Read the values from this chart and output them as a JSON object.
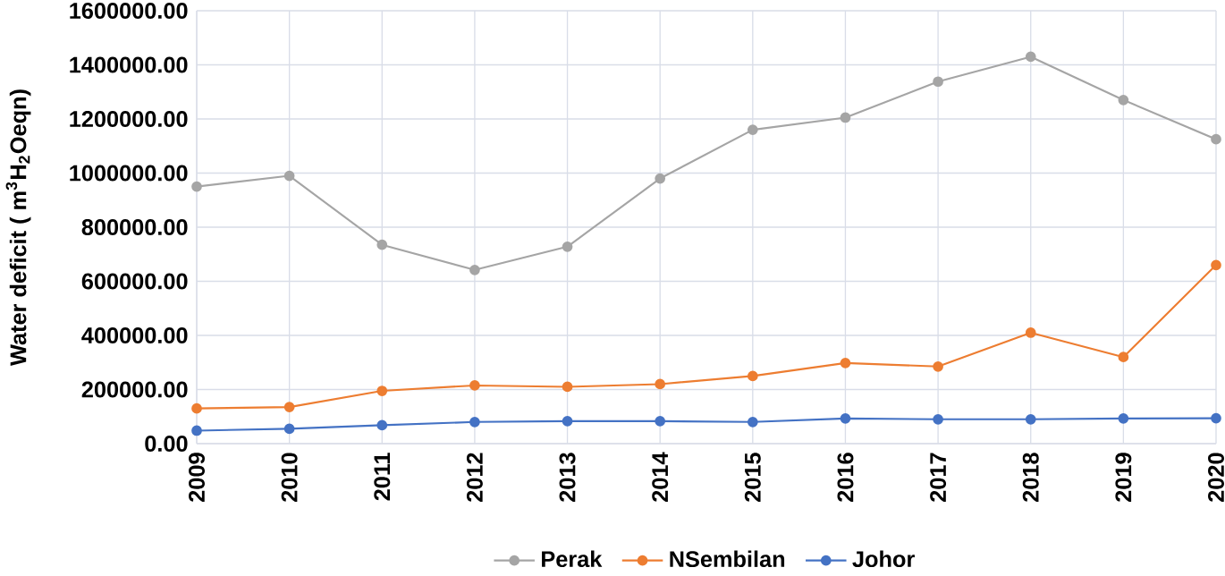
{
  "chart_data": {
    "type": "line",
    "ylabel": "Water deficit ( m$^{3}$H$_{2}$Oeqn)",
    "categories": [
      "2009",
      "2010",
      "2011",
      "2012",
      "2013",
      "2014",
      "2015",
      "2016",
      "2017",
      "2018",
      "2019",
      "2020"
    ],
    "series": [
      {
        "name": "Perak",
        "color": "#a5a5a5",
        "values": [
          950000,
          990000,
          735000,
          642000,
          728000,
          980000,
          1160000,
          1205000,
          1338000,
          1430000,
          1270000,
          1125000
        ]
      },
      {
        "name": "NSembilan",
        "color": "#ed7d31",
        "values": [
          130000,
          135000,
          195000,
          215000,
          210000,
          220000,
          250000,
          298000,
          285000,
          410000,
          320000,
          660000
        ]
      },
      {
        "name": "Johor",
        "color": "#4472c4",
        "values": [
          48000,
          55000,
          68000,
          80000,
          83000,
          83000,
          80000,
          93000,
          90000,
          90000,
          93000,
          94000
        ]
      }
    ],
    "ylim": [
      0,
      1600000
    ],
    "yticks": [
      {
        "value": 0,
        "label": "0.00"
      },
      {
        "value": 200000,
        "label": "200000.00"
      },
      {
        "value": 400000,
        "label": "400000.00"
      },
      {
        "value": 600000,
        "label": "600000.00"
      },
      {
        "value": 800000,
        "label": "800000.00"
      },
      {
        "value": 1000000,
        "label": "1000000.00"
      },
      {
        "value": 1200000,
        "label": "1200000.00"
      },
      {
        "value": 1400000,
        "label": "1400000.00"
      },
      {
        "value": 1600000,
        "label": "1600000.00"
      }
    ],
    "grid": true,
    "legend": "bottom",
    "marker": "circle",
    "line_style": "solid"
  }
}
